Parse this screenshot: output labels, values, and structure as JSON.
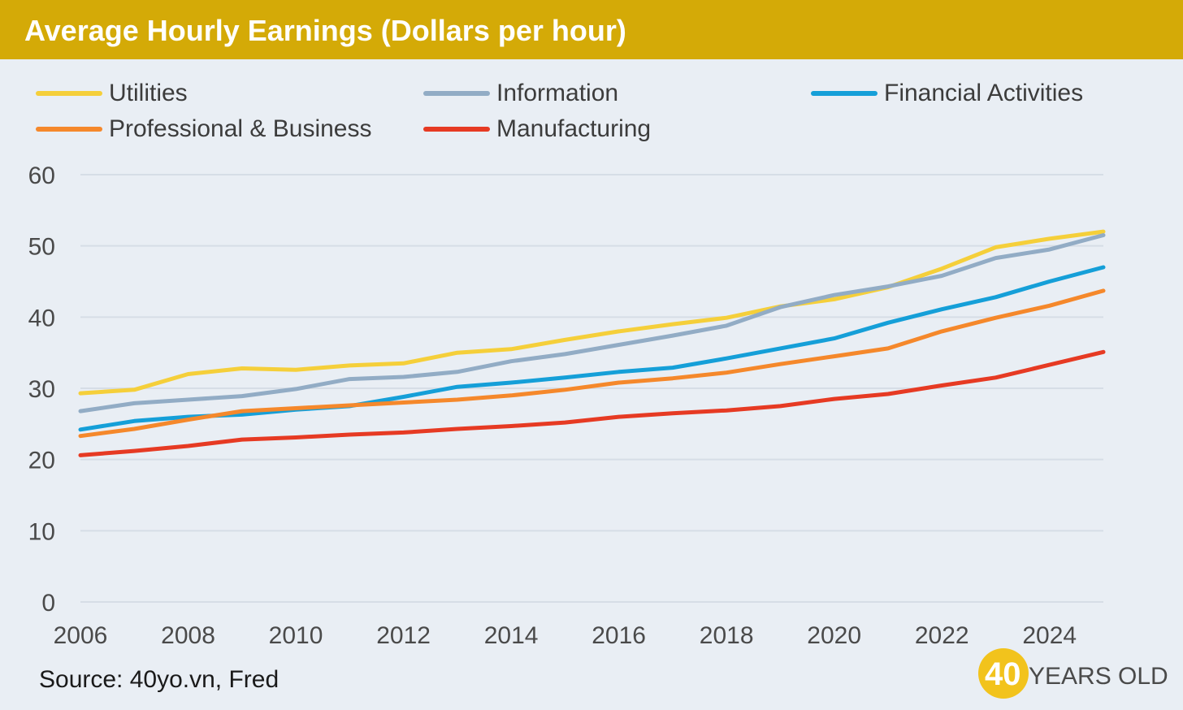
{
  "header": {
    "title": "Average Hourly Earnings (Dollars per hour)"
  },
  "footer": {
    "source": "Source: 40yo.vn, Fred"
  },
  "logo": {
    "number": "40",
    "text": "YEARS OLD",
    "color": "#f2c31c"
  },
  "colors": {
    "title_bar": "#d4aa07",
    "background": "#e9eef4",
    "grid": "#d6dde6"
  },
  "chart_data": {
    "type": "line",
    "title": "Average Hourly Earnings (Dollars per hour)",
    "xlabel": "",
    "ylabel": "",
    "xlim": [
      2006,
      2025
    ],
    "ylim": [
      0,
      60
    ],
    "x_ticks": [
      2006,
      2008,
      2010,
      2012,
      2014,
      2016,
      2018,
      2020,
      2022,
      2024
    ],
    "y_ticks": [
      0,
      10,
      20,
      30,
      40,
      50,
      60
    ],
    "grid": "horizontal",
    "legend_position": "top",
    "x": [
      2006,
      2007,
      2008,
      2009,
      2010,
      2011,
      2012,
      2013,
      2014,
      2015,
      2016,
      2017,
      2018,
      2019,
      2020,
      2021,
      2022,
      2023,
      2024,
      2025
    ],
    "series": [
      {
        "name": "Utilities",
        "color": "#f5cf3a",
        "values": [
          29.3,
          29.8,
          32.0,
          32.8,
          32.6,
          33.2,
          33.5,
          35.0,
          35.5,
          36.8,
          38.0,
          39.0,
          39.9,
          41.5,
          42.5,
          44.2,
          46.8,
          49.8,
          51.0,
          52.0
        ]
      },
      {
        "name": "Information",
        "color": "#92acc5",
        "values": [
          26.8,
          27.9,
          28.4,
          28.9,
          29.9,
          31.3,
          31.6,
          32.3,
          33.8,
          34.8,
          36.1,
          37.4,
          38.8,
          41.4,
          43.1,
          44.3,
          45.8,
          48.3,
          49.5,
          51.5
        ]
      },
      {
        "name": "Financial Activities",
        "color": "#159fd8",
        "values": [
          24.2,
          25.4,
          26.0,
          26.3,
          27.0,
          27.5,
          28.8,
          30.2,
          30.8,
          31.5,
          32.3,
          32.9,
          34.2,
          35.6,
          37.0,
          39.2,
          41.1,
          42.8,
          45.0,
          47.0
        ]
      },
      {
        "name": "Professional & Business",
        "color": "#f5882b",
        "values": [
          23.3,
          24.3,
          25.6,
          26.8,
          27.2,
          27.6,
          28.0,
          28.4,
          29.0,
          29.8,
          30.8,
          31.4,
          32.2,
          33.4,
          34.5,
          35.6,
          38.0,
          39.9,
          41.6,
          43.7
        ]
      },
      {
        "name": "Manufacturing",
        "color": "#e63a23",
        "values": [
          20.6,
          21.2,
          21.9,
          22.8,
          23.1,
          23.5,
          23.8,
          24.3,
          24.7,
          25.2,
          26.0,
          26.5,
          26.9,
          27.5,
          28.5,
          29.2,
          30.4,
          31.5,
          33.3,
          35.1
        ]
      }
    ]
  }
}
